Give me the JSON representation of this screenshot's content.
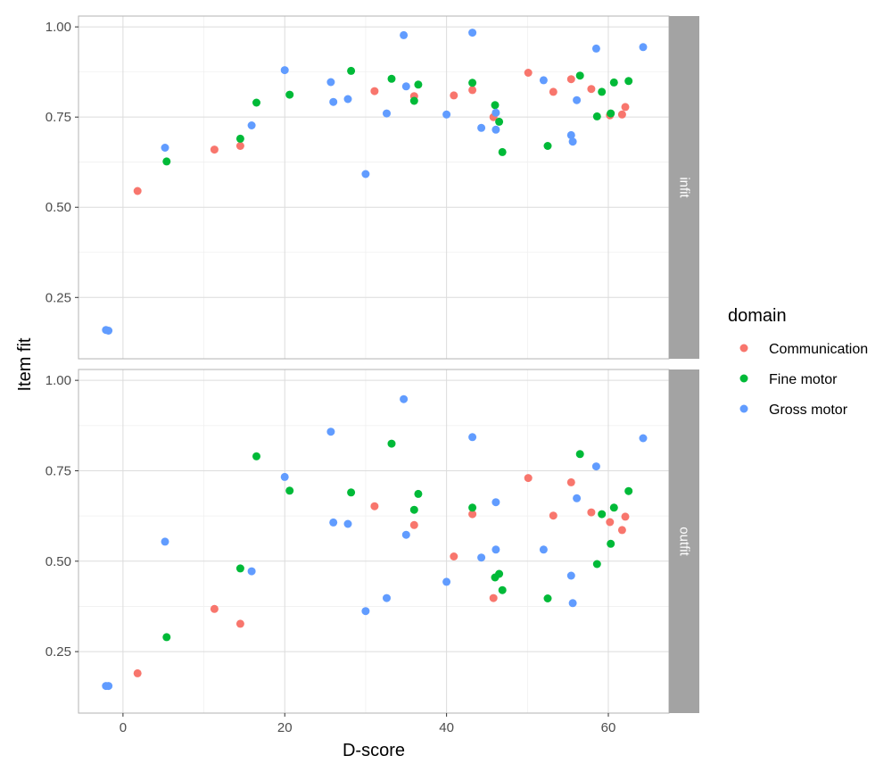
{
  "chart_data": {
    "type": "scatter",
    "xlabel": "D-score",
    "ylabel": "Item fit",
    "xlim": [
      -5.5,
      67.5
    ],
    "ylim": [
      0.08,
      1.03
    ],
    "x_ticks": [
      0,
      20,
      40,
      60
    ],
    "y_ticks": [
      0.25,
      0.5,
      0.75,
      1.0
    ],
    "y_tick_labels": [
      "0.25",
      "0.50",
      "0.75",
      "1.00"
    ],
    "grid": true,
    "legend": {
      "title": "domain",
      "position": "right",
      "entries": [
        {
          "name": "Communication",
          "color": "#F8766D"
        },
        {
          "name": "Fine motor",
          "color": "#00BA38"
        },
        {
          "name": "Gross motor",
          "color": "#619CFF"
        }
      ]
    },
    "panels": [
      {
        "label": "infit",
        "series": [
          {
            "name": "Communication",
            "color": "#F8766D",
            "points": [
              [
                1.8,
                0.545
              ],
              [
                11.3,
                0.66
              ],
              [
                14.5,
                0.67
              ],
              [
                31.1,
                0.822
              ],
              [
                36.0,
                0.808
              ],
              [
                40.9,
                0.81
              ],
              [
                43.2,
                0.825
              ],
              [
                45.8,
                0.75
              ],
              [
                50.1,
                0.873
              ],
              [
                53.2,
                0.82
              ],
              [
                55.4,
                0.855
              ],
              [
                57.9,
                0.828
              ],
              [
                60.2,
                0.755
              ],
              [
                61.7,
                0.757
              ],
              [
                62.1,
                0.778
              ]
            ]
          },
          {
            "name": "Fine motor",
            "color": "#00BA38",
            "points": [
              [
                5.4,
                0.627
              ],
              [
                14.5,
                0.69
              ],
              [
                16.5,
                0.79
              ],
              [
                20.6,
                0.812
              ],
              [
                28.2,
                0.878
              ],
              [
                33.2,
                0.856
              ],
              [
                36.0,
                0.795
              ],
              [
                36.5,
                0.84
              ],
              [
                43.2,
                0.845
              ],
              [
                46.0,
                0.783
              ],
              [
                46.5,
                0.737
              ],
              [
                46.9,
                0.653
              ],
              [
                52.5,
                0.67
              ],
              [
                56.5,
                0.865
              ],
              [
                58.6,
                0.752
              ],
              [
                59.2,
                0.82
              ],
              [
                60.3,
                0.76
              ],
              [
                60.7,
                0.846
              ],
              [
                62.5,
                0.85
              ]
            ]
          },
          {
            "name": "Gross motor",
            "color": "#619CFF",
            "points": [
              [
                -2.1,
                0.16
              ],
              [
                -1.8,
                0.158
              ],
              [
                5.2,
                0.665
              ],
              [
                15.9,
                0.727
              ],
              [
                20.0,
                0.88
              ],
              [
                25.7,
                0.847
              ],
              [
                26.0,
                0.792
              ],
              [
                27.8,
                0.8
              ],
              [
                30.0,
                0.592
              ],
              [
                32.6,
                0.76
              ],
              [
                34.7,
                0.977
              ],
              [
                35.0,
                0.835
              ],
              [
                40.0,
                0.757
              ],
              [
                43.2,
                0.984
              ],
              [
                44.3,
                0.72
              ],
              [
                46.1,
                0.762
              ],
              [
                46.1,
                0.715
              ],
              [
                52.0,
                0.852
              ],
              [
                55.4,
                0.7
              ],
              [
                55.6,
                0.682
              ],
              [
                56.1,
                0.797
              ],
              [
                58.5,
                0.94
              ],
              [
                64.3,
                0.944
              ]
            ]
          }
        ]
      },
      {
        "label": "outfit",
        "series": [
          {
            "name": "Communication",
            "color": "#F8766D",
            "points": [
              [
                1.8,
                0.19
              ],
              [
                11.3,
                0.368
              ],
              [
                14.5,
                0.327
              ],
              [
                31.1,
                0.652
              ],
              [
                36.0,
                0.6
              ],
              [
                40.9,
                0.513
              ],
              [
                43.2,
                0.63
              ],
              [
                45.8,
                0.398
              ],
              [
                50.1,
                0.73
              ],
              [
                53.2,
                0.626
              ],
              [
                55.4,
                0.718
              ],
              [
                57.9,
                0.635
              ],
              [
                60.2,
                0.608
              ],
              [
                61.7,
                0.586
              ],
              [
                62.1,
                0.623
              ]
            ]
          },
          {
            "name": "Fine motor",
            "color": "#00BA38",
            "points": [
              [
                5.4,
                0.29
              ],
              [
                14.5,
                0.48
              ],
              [
                16.5,
                0.79
              ],
              [
                20.6,
                0.695
              ],
              [
                28.2,
                0.69
              ],
              [
                33.2,
                0.825
              ],
              [
                36.0,
                0.642
              ],
              [
                36.5,
                0.686
              ],
              [
                43.2,
                0.648
              ],
              [
                46.0,
                0.455
              ],
              [
                46.5,
                0.465
              ],
              [
                46.9,
                0.42
              ],
              [
                52.5,
                0.397
              ],
              [
                56.5,
                0.796
              ],
              [
                58.6,
                0.492
              ],
              [
                59.2,
                0.63
              ],
              [
                60.3,
                0.548
              ],
              [
                60.7,
                0.648
              ],
              [
                62.5,
                0.694
              ]
            ]
          },
          {
            "name": "Gross motor",
            "color": "#619CFF",
            "points": [
              [
                -2.1,
                0.155
              ],
              [
                -1.8,
                0.155
              ],
              [
                5.2,
                0.554
              ],
              [
                15.9,
                0.472
              ],
              [
                20.0,
                0.733
              ],
              [
                25.7,
                0.858
              ],
              [
                26.0,
                0.607
              ],
              [
                27.8,
                0.603
              ],
              [
                30.0,
                0.362
              ],
              [
                32.6,
                0.398
              ],
              [
                34.7,
                0.948
              ],
              [
                35.0,
                0.573
              ],
              [
                40.0,
                0.443
              ],
              [
                43.2,
                0.843
              ],
              [
                44.3,
                0.51
              ],
              [
                46.1,
                0.663
              ],
              [
                46.1,
                0.532
              ],
              [
                52.0,
                0.532
              ],
              [
                55.4,
                0.46
              ],
              [
                55.6,
                0.384
              ],
              [
                56.1,
                0.674
              ],
              [
                58.5,
                0.762
              ],
              [
                64.3,
                0.84
              ]
            ]
          }
        ]
      }
    ]
  }
}
